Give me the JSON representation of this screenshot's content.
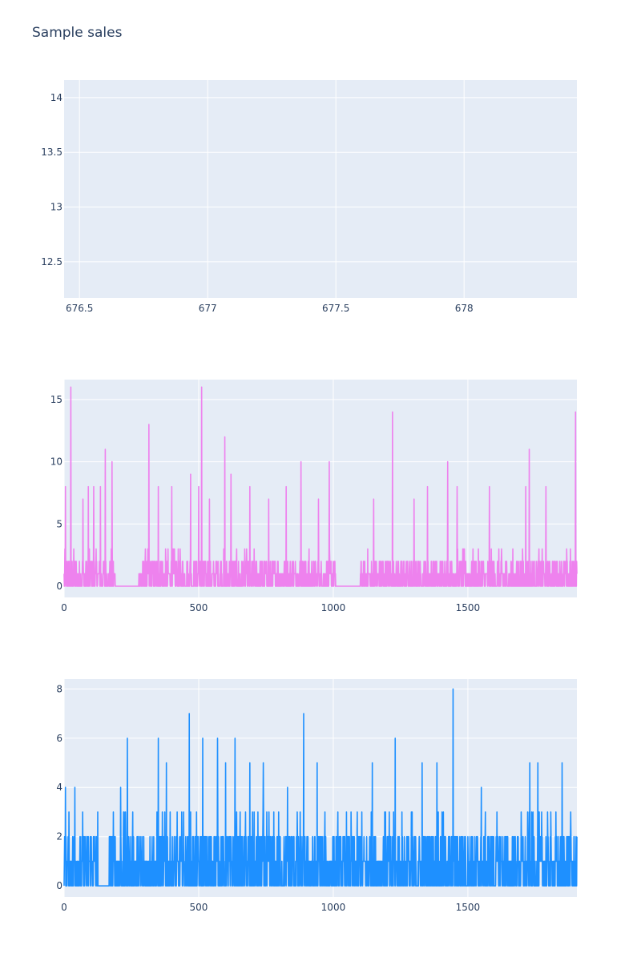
{
  "title": "Sample sales",
  "colors": {
    "plot_bg": "#e5ecf6",
    "grid": "#ffffff",
    "tick_text": "#2a3f5f",
    "series2": "#ee82ee",
    "series3": "#1e90ff"
  },
  "chart_data": [
    {
      "type": "line",
      "xlim": [
        676.44,
        678.44
      ],
      "ylim": [
        12.17,
        14.16
      ],
      "xticks": [
        "676.5",
        "677",
        "677.5",
        "678"
      ],
      "xtick_values": [
        676.5,
        677,
        677.5,
        678
      ],
      "yticks": [
        "12.5",
        "13",
        "13.5",
        "14"
      ],
      "ytick_values": [
        12.5,
        13,
        13.5,
        14
      ],
      "grid": true,
      "series": []
    },
    {
      "type": "line",
      "xlim": [
        0,
        1905
      ],
      "ylim": [
        -0.9,
        16.6
      ],
      "xticks": [
        "0",
        "500",
        "1000",
        "1500"
      ],
      "xtick_values": [
        0,
        500,
        1000,
        1500
      ],
      "yticks": [
        "0",
        "5",
        "10",
        "15"
      ],
      "ytick_values": [
        0,
        5,
        10,
        15
      ],
      "grid": true,
      "series": [
        {
          "color": "#ee82ee",
          "zero_ranges": [
            [
              190,
              275
            ],
            [
              1010,
              1100
            ]
          ],
          "baseline_max": 2,
          "spikes": [
            [
              5,
              8
            ],
            [
              25,
              16
            ],
            [
              70,
              7
            ],
            [
              90,
              8
            ],
            [
              110,
              8
            ],
            [
              135,
              8
            ],
            [
              153,
              11
            ],
            [
              178,
              10
            ],
            [
              315,
              13
            ],
            [
              350,
              8
            ],
            [
              400,
              8
            ],
            [
              470,
              9
            ],
            [
              500,
              8
            ],
            [
              511,
              16
            ],
            [
              540,
              7
            ],
            [
              597,
              12
            ],
            [
              620,
              9
            ],
            [
              690,
              8
            ],
            [
              760,
              7
            ],
            [
              760,
              7
            ],
            [
              825,
              8
            ],
            [
              880,
              10
            ],
            [
              945,
              7
            ],
            [
              985,
              10
            ],
            [
              1150,
              7
            ],
            [
              1220,
              14
            ],
            [
              1300,
              7
            ],
            [
              1350,
              8
            ],
            [
              1425,
              10
            ],
            [
              1460,
              8
            ],
            [
              1580,
              8
            ],
            [
              1715,
              8
            ],
            [
              1728,
              11
            ],
            [
              1790,
              8
            ],
            [
              1900,
              14
            ]
          ]
        }
      ]
    },
    {
      "type": "line",
      "xlim": [
        0,
        1905
      ],
      "ylim": [
        -0.45,
        8.4
      ],
      "xticks": [
        "0",
        "500",
        "1000",
        "1500"
      ],
      "xtick_values": [
        0,
        500,
        1000,
        1500
      ],
      "yticks": [
        "0",
        "2",
        "4",
        "6",
        "8"
      ],
      "ytick_values": [
        0,
        2,
        4,
        6,
        8
      ],
      "grid": true,
      "series": [
        {
          "color": "#1e90ff",
          "zero_ranges": [
            [
              125,
              168
            ]
          ],
          "baseline_max": 2,
          "spikes": [
            [
              5,
              4
            ],
            [
              40,
              4
            ],
            [
              125,
              3
            ],
            [
              168,
              2
            ],
            [
              210,
              4
            ],
            [
              235,
              6
            ],
            [
              350,
              6
            ],
            [
              380,
              5
            ],
            [
              465,
              7
            ],
            [
              515,
              6
            ],
            [
              570,
              6
            ],
            [
              600,
              5
            ],
            [
              635,
              6
            ],
            [
              690,
              5
            ],
            [
              740,
              5
            ],
            [
              830,
              4
            ],
            [
              890,
              7
            ],
            [
              940,
              5
            ],
            [
              1145,
              5
            ],
            [
              1230,
              6
            ],
            [
              1330,
              5
            ],
            [
              1385,
              5
            ],
            [
              1445,
              8
            ],
            [
              1550,
              4
            ],
            [
              1730,
              5
            ],
            [
              1760,
              5
            ],
            [
              1850,
              5
            ]
          ]
        }
      ]
    }
  ]
}
